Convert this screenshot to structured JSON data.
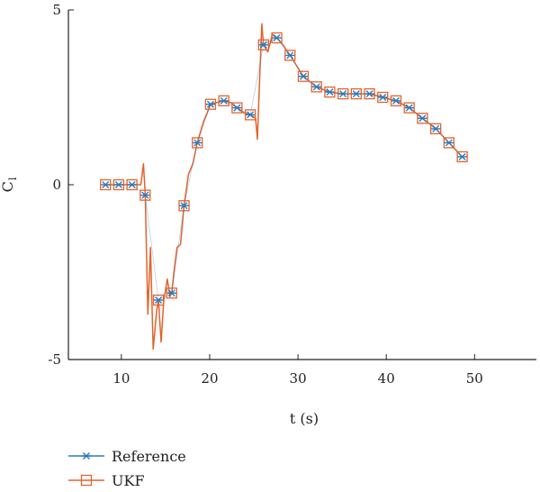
{
  "chart_data": {
    "type": "line",
    "title": "",
    "xlabel": "t (s)",
    "ylabel": "C",
    "ylabel_subscript": "l",
    "xlim": [
      4,
      57
    ],
    "ylim": [
      -5,
      5
    ],
    "xticks": [
      10,
      20,
      30,
      40,
      50
    ],
    "yticks": [
      -5,
      0,
      5
    ],
    "grid": false,
    "legend_position": "bottom-left",
    "colors": {
      "reference": "#2b7bb9",
      "ukf": "#e3632d"
    },
    "series": [
      {
        "name": "Reference",
        "marker": "asterisk",
        "x": [
          8.2,
          9.7,
          11.2,
          12.7,
          14.2,
          15.7,
          17.1,
          18.6,
          20.1,
          21.6,
          23.1,
          24.6,
          26.1,
          27.6,
          29.1,
          30.6,
          32.1,
          33.6,
          35.1,
          36.6,
          38.1,
          39.6,
          41.1,
          42.6,
          44.1,
          45.6,
          47.1,
          48.6
        ],
        "y": [
          0.0,
          0.0,
          0.0,
          -0.3,
          -3.3,
          -3.1,
          -0.6,
          1.2,
          2.3,
          2.4,
          2.2,
          2.0,
          4.0,
          4.2,
          3.7,
          3.1,
          2.8,
          2.65,
          2.6,
          2.6,
          2.6,
          2.5,
          2.4,
          2.2,
          1.9,
          1.6,
          1.2,
          0.8
        ]
      },
      {
        "name": "UKF",
        "marker": "square",
        "x": [
          8.2,
          9.7,
          11.2,
          12.2,
          12.5,
          12.7,
          13.0,
          13.3,
          13.6,
          14.0,
          14.2,
          14.5,
          14.8,
          15.2,
          15.5,
          15.7,
          16.0,
          16.3,
          16.7,
          17.1,
          17.6,
          18.1,
          18.6,
          19.3,
          20.1,
          20.8,
          21.6,
          22.4,
          23.1,
          23.9,
          24.6,
          25.2,
          25.4,
          25.7,
          25.9,
          26.1,
          26.6,
          27.1,
          27.6,
          28.3,
          29.1,
          30.6,
          32.1,
          33.6,
          35.1,
          36.6,
          38.1,
          39.6,
          41.1,
          42.6,
          44.1,
          45.6,
          47.1,
          48.6
        ],
        "y": [
          0.0,
          0.0,
          0.0,
          0.0,
          0.6,
          -0.3,
          -3.7,
          -1.8,
          -4.7,
          -3.6,
          -3.3,
          -4.5,
          -3.3,
          -2.7,
          -3.2,
          -3.1,
          -2.4,
          -1.8,
          -1.7,
          -0.6,
          0.3,
          0.6,
          1.2,
          1.8,
          2.3,
          2.35,
          2.4,
          2.35,
          2.2,
          2.05,
          2.0,
          1.9,
          1.3,
          3.3,
          4.6,
          4.0,
          3.8,
          4.3,
          4.2,
          4.0,
          3.7,
          3.1,
          2.8,
          2.65,
          2.6,
          2.6,
          2.6,
          2.5,
          2.4,
          2.2,
          1.9,
          1.6,
          1.2,
          0.8
        ]
      }
    ]
  }
}
